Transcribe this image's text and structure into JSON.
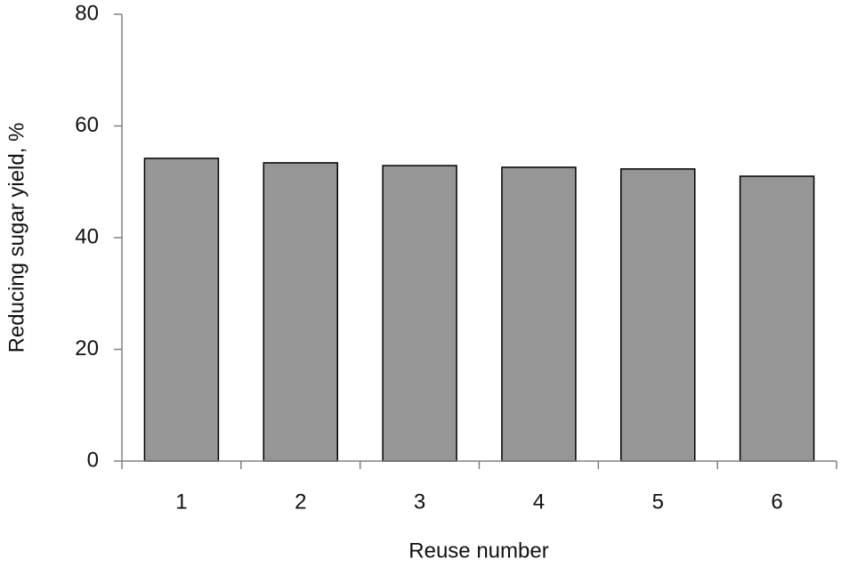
{
  "chart_data": {
    "type": "bar",
    "x_label": "Reuse number",
    "y_label": "Reducing sugar yield, %",
    "categories": [
      "1",
      "2",
      "3",
      "4",
      "5",
      "6"
    ],
    "values": [
      54.2,
      53.4,
      52.9,
      52.6,
      52.3,
      51.0
    ],
    "color": "#969696",
    "ylim": [
      0,
      80
    ],
    "yticks": [
      0,
      20,
      40,
      60,
      80
    ],
    "grid": false
  }
}
